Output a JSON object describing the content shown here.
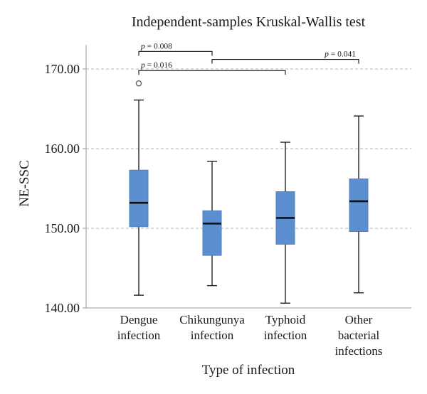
{
  "chart_data": {
    "type": "box",
    "title": "Independent-samples Kruskal-Wallis test",
    "xlabel": "Type of infection",
    "ylabel": "NE-SSC",
    "ylim": [
      140,
      173
    ],
    "yticks": [
      "140.00",
      "150.00",
      "160.00",
      "170.00"
    ],
    "ytick_values": [
      140,
      150,
      160,
      170
    ],
    "grid": "horizontal-dashed",
    "box_color": "#5b8fd0",
    "median_color": "#111111",
    "categories": [
      {
        "lines": [
          "Dengue",
          "infection"
        ]
      },
      {
        "lines": [
          "Chikungunya",
          "infection"
        ]
      },
      {
        "lines": [
          "Typhoid",
          "infection"
        ]
      },
      {
        "lines": [
          "Other",
          "bacterial",
          "infections"
        ]
      }
    ],
    "boxes": [
      {
        "whisker_low": 141.6,
        "q1": 150.2,
        "median": 153.2,
        "q3": 157.3,
        "whisker_high": 166.1,
        "outliers": [
          168.2
        ]
      },
      {
        "whisker_low": 142.8,
        "q1": 146.6,
        "median": 150.6,
        "q3": 152.2,
        "whisker_high": 158.4,
        "outliers": []
      },
      {
        "whisker_low": 140.6,
        "q1": 148.0,
        "median": 151.3,
        "q3": 154.6,
        "whisker_high": 160.8,
        "outliers": []
      },
      {
        "whisker_low": 141.9,
        "q1": 149.6,
        "median": 153.4,
        "q3": 156.2,
        "whisker_high": 164.1,
        "outliers": []
      }
    ],
    "comparisons": [
      {
        "from": 0,
        "to": 1,
        "p_symbol": "p",
        "p_rest": " = 0.008",
        "y": 172.2
      },
      {
        "from": 1,
        "to": 3,
        "p_symbol": "p",
        "p_rest": " = 0.041",
        "y": 171.2
      },
      {
        "from": 0,
        "to": 2,
        "p_symbol": "p",
        "p_rest": " = 0.016",
        "y": 169.8
      }
    ]
  }
}
